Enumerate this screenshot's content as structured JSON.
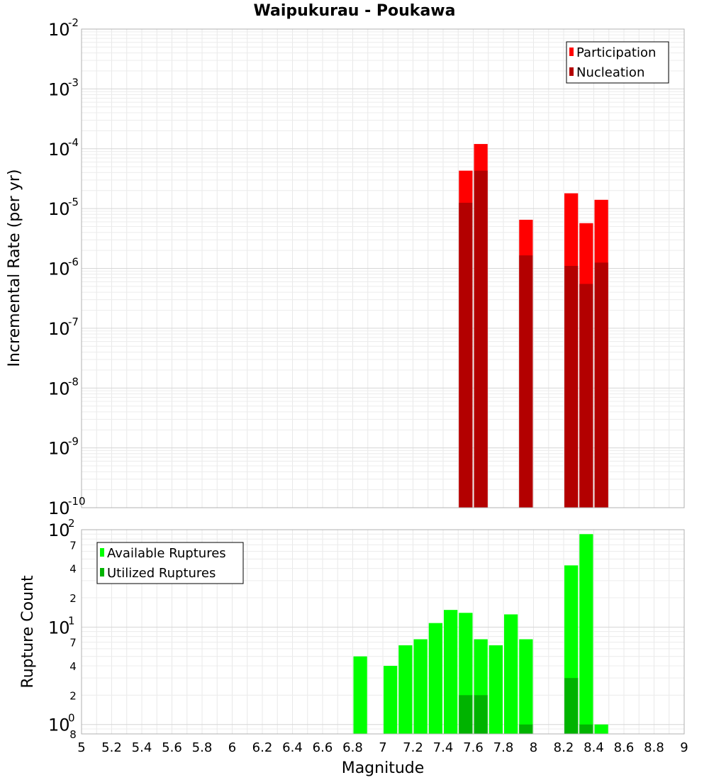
{
  "chart_data": [
    {
      "type": "bar",
      "title": "Waipukurau - Poukawa",
      "ylabel": "Incremental Rate (per yr)",
      "xlabel": "",
      "xlim": [
        5,
        9
      ],
      "ylim": [
        1e-10,
        0.01
      ],
      "yscale": "log",
      "bar_width": 0.1,
      "grid": true,
      "legend_position": "top-right",
      "legend": [
        "Participation",
        "Nucleation"
      ],
      "colors": {
        "Participation": "#ff0000",
        "Nucleation": "#b30000"
      },
      "series": [
        {
          "name": "Participation",
          "x": [
            7.55,
            7.65,
            7.95,
            8.25,
            8.35,
            8.45
          ],
          "values": [
            4.3e-05,
            0.00012,
            6.5e-06,
            1.8e-05,
            5.7e-06,
            1.4e-05
          ]
        },
        {
          "name": "Nucleation",
          "x": [
            7.55,
            7.65,
            7.95,
            8.25,
            8.35,
            8.45
          ],
          "values": [
            1.25e-05,
            4.3e-05,
            1.65e-06,
            1.1e-06,
            5.5e-07,
            1.25e-06
          ]
        }
      ],
      "y_major_ticks": [
        {
          "base": "10",
          "exp": "-10",
          "value": 1e-10
        },
        {
          "base": "10",
          "exp": "-9",
          "value": 1e-09
        },
        {
          "base": "10",
          "exp": "-8",
          "value": 1e-08
        },
        {
          "base": "10",
          "exp": "-7",
          "value": 1e-07
        },
        {
          "base": "10",
          "exp": "-6",
          "value": 1e-06
        },
        {
          "base": "10",
          "exp": "-5",
          "value": 1e-05
        },
        {
          "base": "10",
          "exp": "-4",
          "value": 0.0001
        },
        {
          "base": "10",
          "exp": "-3",
          "value": 0.001
        },
        {
          "base": "10",
          "exp": "-2",
          "value": 0.01
        }
      ]
    },
    {
      "type": "bar",
      "title": "",
      "ylabel": "Rupture Count",
      "xlabel": "Magnitude",
      "xlim": [
        5,
        9
      ],
      "ylim": [
        0.8,
        100
      ],
      "yscale": "log",
      "bar_width": 0.1,
      "grid": true,
      "legend_position": "top-left",
      "legend": [
        "Available Ruptures",
        "Utilized Ruptures"
      ],
      "colors": {
        "Available Ruptures": "#00ff00",
        "Utilized Ruptures": "#00b300"
      },
      "series": [
        {
          "name": "Available Ruptures",
          "x": [
            6.85,
            7.05,
            7.15,
            7.25,
            7.35,
            7.45,
            7.55,
            7.65,
            7.75,
            7.85,
            7.95,
            8.25,
            8.35,
            8.45
          ],
          "values": [
            5,
            4,
            6.5,
            7.5,
            11,
            15,
            14,
            7.5,
            6.5,
            13.5,
            7.5,
            43,
            90,
            1
          ]
        },
        {
          "name": "Utilized Ruptures",
          "x": [
            7.55,
            7.65,
            7.95,
            8.25,
            8.35
          ],
          "values": [
            2,
            2,
            1,
            3,
            1
          ]
        }
      ],
      "y_major_ticks": [
        {
          "base": "10",
          "exp": "0",
          "value": 1
        },
        {
          "base": "10",
          "exp": "1",
          "value": 10
        },
        {
          "base": "10",
          "exp": "2",
          "value": 100
        }
      ],
      "y_minor_ticks": [
        {
          "label": "8",
          "value": 0.8
        },
        {
          "label": "2",
          "value": 2
        },
        {
          "label": "4",
          "value": 4
        },
        {
          "label": "7",
          "value": 7
        },
        {
          "label": "2",
          "value": 20
        },
        {
          "label": "4",
          "value": 40
        },
        {
          "label": "7",
          "value": 70
        }
      ],
      "x_ticks": [
        "5",
        "5.2",
        "5.4",
        "5.6",
        "5.8",
        "6",
        "6.2",
        "6.4",
        "6.6",
        "6.8",
        "7",
        "7.2",
        "7.4",
        "7.6",
        "7.8",
        "8",
        "8.2",
        "8.4",
        "8.6",
        "8.8",
        "9"
      ]
    }
  ]
}
